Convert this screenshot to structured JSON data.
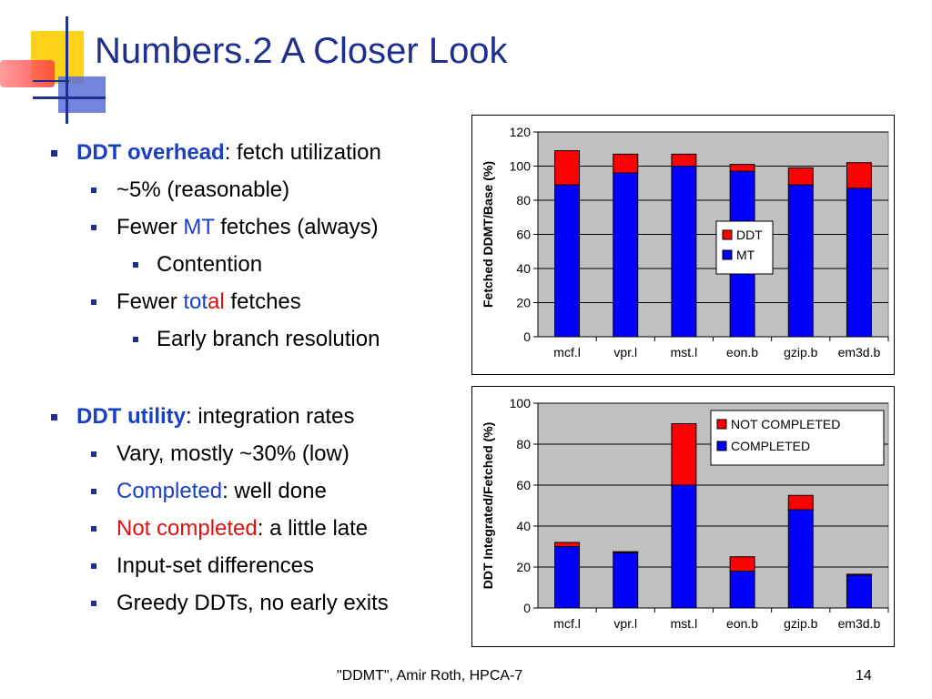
{
  "slide": {
    "title": "Numbers.2  A Closer Look",
    "footer": "\"DDMT\", Amir Roth, HPCA-7",
    "page": "14"
  },
  "bullets": {
    "b1": {
      "bold": "DDT overhead",
      "rest": ": fetch utilization"
    },
    "b1_1": "~5% (reasonable)",
    "b1_2": {
      "pre": "Fewer ",
      "mt": "MT",
      "post": " fetches (always)"
    },
    "b1_2_1": "Contention",
    "b1_3": {
      "pre": "Fewer ",
      "tot": "tot",
      "al": "al",
      "post": " fetches"
    },
    "b1_3_1": "Early branch resolution",
    "b2": {
      "bold": "DDT utility",
      "rest": ": integration rates"
    },
    "b2_1": "Vary, mostly ~30% (low)",
    "b2_2": {
      "colored": "Completed",
      "rest": ": well done"
    },
    "b2_3": {
      "colored": "Not completed",
      "rest": ": a little late"
    },
    "b2_4": "Input-set differences",
    "b2_5": "Greedy DDTs, no early exits"
  },
  "colors": {
    "bar_bottom": "#0000ff",
    "bar_top": "#ff0000",
    "plot_bg": "#c0c0c0",
    "title": "#1f2f8f",
    "emphasis_blue": "#1a3fc7",
    "emphasis_red": "#e01010"
  },
  "chart_data": [
    {
      "type": "bar",
      "stacked": true,
      "categories": [
        "mcf.l",
        "vpr.l",
        "mst.l",
        "eon.b",
        "gzip.b",
        "em3d.b"
      ],
      "series": [
        {
          "name": "MT",
          "values": [
            89,
            96,
            100,
            97,
            89,
            87
          ]
        },
        {
          "name": "DDT",
          "values": [
            20,
            11,
            7,
            4,
            10,
            15
          ]
        }
      ],
      "ylabel": "Fetched DDMT/Base (%)",
      "ylim": [
        0,
        120
      ],
      "yticks": [
        0,
        20,
        40,
        60,
        80,
        100,
        120
      ],
      "legend": [
        "DDT",
        "MT"
      ],
      "legend_position": "right",
      "grid": true
    },
    {
      "type": "bar",
      "stacked": true,
      "categories": [
        "mcf.l",
        "vpr.l",
        "mst.l",
        "eon.b",
        "gzip.b",
        "em3d.b"
      ],
      "series": [
        {
          "name": "COMPLETED",
          "values": [
            30,
            27,
            60,
            18,
            48,
            16
          ]
        },
        {
          "name": "NOT COMPLETED",
          "values": [
            2,
            0.5,
            30,
            7,
            7,
            0.5
          ]
        }
      ],
      "ylabel": "DDT Integrated/Fetched (%)",
      "ylim": [
        0,
        100
      ],
      "yticks": [
        0,
        20,
        40,
        60,
        80,
        100
      ],
      "legend": [
        "NOT COMPLETED",
        "COMPLETED"
      ],
      "legend_position": "top-right",
      "grid": true
    }
  ]
}
